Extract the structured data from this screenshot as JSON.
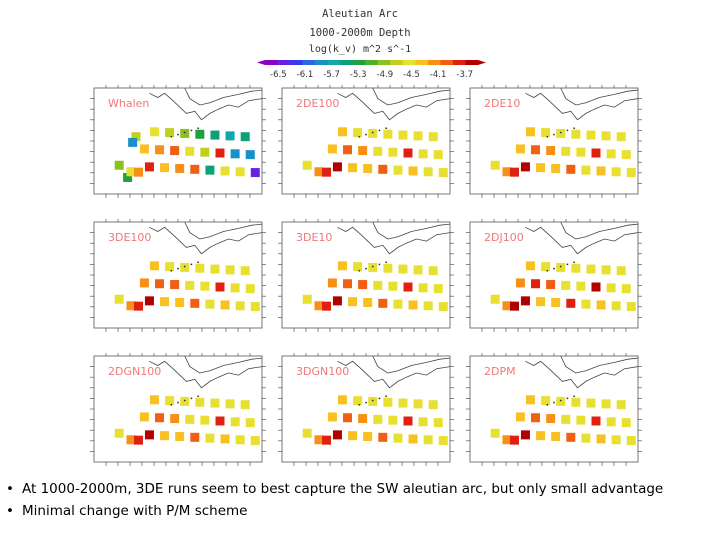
{
  "chart_data": {
    "type": "heatmap",
    "title": "Aleutian Arc",
    "subtitle": "1000-2000m Depth",
    "colorbar": {
      "label": "log(k_v)  m^2 s^-1",
      "min": -6.7,
      "max": -3.5,
      "tick_labels": [
        "-6.5",
        "-6.1",
        "-5.7",
        "-5.3",
        "-4.9",
        "-4.5",
        "-4.1",
        "-3.7"
      ],
      "colors": [
        "#8a00c4",
        "#6a20e0",
        "#3a3ae8",
        "#2a6ae0",
        "#1a90c8",
        "#10a8a8",
        "#10a078",
        "#20a040",
        "#50b028",
        "#8ac020",
        "#c0d020",
        "#e8e030",
        "#f8c020",
        "#f89018",
        "#f06010",
        "#e02010",
        "#b00000"
      ]
    },
    "panels": [
      {
        "name": "Whalen",
        "cells": [
          [
            3,
            -4.9
          ],
          [
            4,
            -5.3
          ],
          [
            4.4,
            -4.5
          ],
          [
            5,
            -4.7
          ],
          [
            5.3,
            -4.2
          ],
          [
            4.6,
            -5.8
          ],
          [
            6,
            -4.4
          ],
          [
            6.6,
            -3.7
          ],
          [
            7.2,
            -4.6
          ],
          [
            7.8,
            -4.1
          ],
          [
            8.4,
            -4.4
          ],
          [
            9,
            -4.8
          ],
          [
            9.6,
            -4.0
          ],
          [
            10.2,
            -4.2
          ],
          [
            10.8,
            -4.9
          ],
          [
            11.4,
            -4.5
          ],
          [
            12,
            -3.9
          ],
          [
            12.6,
            -5.2
          ],
          [
            13.2,
            -4.7
          ],
          [
            13.8,
            -5.4
          ],
          [
            14.4,
            -5.5
          ],
          [
            15,
            -3.8
          ],
          [
            15.6,
            -4.5
          ],
          [
            16.2,
            -5.6
          ],
          [
            16.8,
            -5.9
          ],
          [
            17.4,
            -4.6
          ],
          [
            18,
            -5.5
          ],
          [
            18.6,
            -5.9
          ],
          [
            19.2,
            -6.5
          ]
        ]
      },
      {
        "name": "2DE100",
        "cells": [
          [
            3,
            -4.6
          ],
          [
            4.4,
            -4.1
          ],
          [
            5.3,
            -3.7
          ],
          [
            6,
            -4.3
          ],
          [
            6.6,
            -3.6
          ],
          [
            7.2,
            -4.4
          ],
          [
            7.8,
            -4.0
          ],
          [
            8.4,
            -4.4
          ],
          [
            9,
            -4.6
          ],
          [
            9.6,
            -4.1
          ],
          [
            10.2,
            -4.3
          ],
          [
            10.8,
            -4.6
          ],
          [
            11.4,
            -4.5
          ],
          [
            12,
            -3.9
          ],
          [
            12.6,
            -4.6
          ],
          [
            13.2,
            -4.6
          ],
          [
            13.8,
            -4.6
          ],
          [
            14.4,
            -4.6
          ],
          [
            15,
            -3.7
          ],
          [
            15.6,
            -4.4
          ],
          [
            16.2,
            -4.6
          ],
          [
            16.8,
            -4.6
          ],
          [
            17.4,
            -4.6
          ],
          [
            18,
            -4.6
          ],
          [
            18.6,
            -4.6
          ],
          [
            19.2,
            -4.6
          ]
        ]
      },
      {
        "name": "2DE10",
        "cells": [
          [
            3,
            -4.6
          ],
          [
            4.4,
            -4.1
          ],
          [
            5.3,
            -3.7
          ],
          [
            6,
            -4.3
          ],
          [
            6.6,
            -3.6
          ],
          [
            7.2,
            -4.4
          ],
          [
            7.8,
            -4.0
          ],
          [
            8.4,
            -4.4
          ],
          [
            9,
            -4.6
          ],
          [
            9.6,
            -4.1
          ],
          [
            10.2,
            -4.3
          ],
          [
            10.8,
            -4.6
          ],
          [
            11.4,
            -4.5
          ],
          [
            12,
            -3.9
          ],
          [
            12.6,
            -4.6
          ],
          [
            13.2,
            -4.6
          ],
          [
            13.8,
            -4.6
          ],
          [
            14.4,
            -4.6
          ],
          [
            15,
            -3.7
          ],
          [
            15.6,
            -4.4
          ],
          [
            16.2,
            -4.6
          ],
          [
            16.8,
            -4.6
          ],
          [
            17.4,
            -4.6
          ],
          [
            18,
            -4.6
          ],
          [
            18.6,
            -4.6
          ],
          [
            19.2,
            -4.6
          ]
        ]
      },
      {
        "name": "3DE100",
        "cells": [
          [
            3,
            -4.6
          ],
          [
            4.4,
            -4.2
          ],
          [
            5.3,
            -3.8
          ],
          [
            6,
            -4.2
          ],
          [
            6.6,
            -3.6
          ],
          [
            7.2,
            -4.3
          ],
          [
            7.8,
            -3.9
          ],
          [
            8.4,
            -4.4
          ],
          [
            9,
            -4.6
          ],
          [
            9.6,
            -4.0
          ],
          [
            10.2,
            -4.3
          ],
          [
            10.8,
            -4.6
          ],
          [
            11.4,
            -4.5
          ],
          [
            12,
            -3.9
          ],
          [
            12.6,
            -4.6
          ],
          [
            13.2,
            -4.6
          ],
          [
            13.8,
            -4.6
          ],
          [
            14.4,
            -4.6
          ],
          [
            15,
            -3.8
          ],
          [
            15.6,
            -4.4
          ],
          [
            16.2,
            -4.6
          ],
          [
            16.8,
            -4.6
          ],
          [
            17.4,
            -4.6
          ],
          [
            18,
            -4.6
          ],
          [
            18.6,
            -4.6
          ],
          [
            19.2,
            -4.6
          ]
        ]
      },
      {
        "name": "3DE10",
        "cells": [
          [
            3,
            -4.6
          ],
          [
            4.4,
            -4.2
          ],
          [
            5.3,
            -3.8
          ],
          [
            6,
            -4.2
          ],
          [
            6.6,
            -3.6
          ],
          [
            7.2,
            -4.3
          ],
          [
            7.8,
            -3.9
          ],
          [
            8.4,
            -4.4
          ],
          [
            9,
            -4.6
          ],
          [
            9.6,
            -4.0
          ],
          [
            10.2,
            -4.3
          ],
          [
            10.8,
            -4.6
          ],
          [
            11.4,
            -4.5
          ],
          [
            12,
            -3.9
          ],
          [
            12.6,
            -4.6
          ],
          [
            13.2,
            -4.6
          ],
          [
            13.8,
            -4.6
          ],
          [
            14.4,
            -4.6
          ],
          [
            15,
            -3.8
          ],
          [
            15.6,
            -4.4
          ],
          [
            16.2,
            -4.6
          ],
          [
            16.8,
            -4.6
          ],
          [
            17.4,
            -4.6
          ],
          [
            18,
            -4.6
          ],
          [
            18.6,
            -4.6
          ],
          [
            19.2,
            -4.6
          ]
        ]
      },
      {
        "name": "2DJ100",
        "cells": [
          [
            3,
            -4.6
          ],
          [
            4.4,
            -4.1
          ],
          [
            5.3,
            -3.6
          ],
          [
            6,
            -4.2
          ],
          [
            6.6,
            -3.6
          ],
          [
            7.2,
            -4.3
          ],
          [
            7.8,
            -3.8
          ],
          [
            8.4,
            -4.4
          ],
          [
            9,
            -4.6
          ],
          [
            9.6,
            -4.0
          ],
          [
            10.2,
            -4.3
          ],
          [
            10.8,
            -4.6
          ],
          [
            11.4,
            -4.5
          ],
          [
            12,
            -3.8
          ],
          [
            12.6,
            -4.6
          ],
          [
            13.2,
            -4.6
          ],
          [
            13.8,
            -4.6
          ],
          [
            14.4,
            -4.6
          ],
          [
            15,
            -3.6
          ],
          [
            15.6,
            -4.4
          ],
          [
            16.2,
            -4.6
          ],
          [
            16.8,
            -4.6
          ],
          [
            17.4,
            -4.6
          ],
          [
            18,
            -4.6
          ],
          [
            18.6,
            -4.6
          ],
          [
            19.2,
            -4.6
          ]
        ]
      },
      {
        "name": "2DGN100",
        "cells": [
          [
            3,
            -4.6
          ],
          [
            4.4,
            -4.2
          ],
          [
            5.3,
            -3.8
          ],
          [
            6,
            -4.3
          ],
          [
            6.6,
            -3.6
          ],
          [
            7.2,
            -4.4
          ],
          [
            7.8,
            -4.0
          ],
          [
            8.4,
            -4.4
          ],
          [
            9,
            -4.6
          ],
          [
            9.6,
            -4.1
          ],
          [
            10.2,
            -4.3
          ],
          [
            10.8,
            -4.6
          ],
          [
            11.4,
            -4.5
          ],
          [
            12,
            -3.9
          ],
          [
            12.6,
            -4.6
          ],
          [
            13.2,
            -4.6
          ],
          [
            13.8,
            -4.6
          ],
          [
            14.4,
            -4.6
          ],
          [
            15,
            -3.8
          ],
          [
            15.6,
            -4.4
          ],
          [
            16.2,
            -4.6
          ],
          [
            16.8,
            -4.6
          ],
          [
            17.4,
            -4.6
          ],
          [
            18,
            -4.6
          ],
          [
            18.6,
            -4.6
          ],
          [
            19.2,
            -4.6
          ]
        ]
      },
      {
        "name": "3DGN100",
        "cells": [
          [
            3,
            -4.6
          ],
          [
            4.4,
            -4.2
          ],
          [
            5.3,
            -3.8
          ],
          [
            6,
            -4.3
          ],
          [
            6.6,
            -3.6
          ],
          [
            7.2,
            -4.4
          ],
          [
            7.8,
            -4.0
          ],
          [
            8.4,
            -4.4
          ],
          [
            9,
            -4.6
          ],
          [
            9.6,
            -4.1
          ],
          [
            10.2,
            -4.3
          ],
          [
            10.8,
            -4.6
          ],
          [
            11.4,
            -4.5
          ],
          [
            12,
            -3.9
          ],
          [
            12.6,
            -4.6
          ],
          [
            13.2,
            -4.6
          ],
          [
            13.8,
            -4.6
          ],
          [
            14.4,
            -4.6
          ],
          [
            15,
            -3.8
          ],
          [
            15.6,
            -4.4
          ],
          [
            16.2,
            -4.6
          ],
          [
            16.8,
            -4.6
          ],
          [
            17.4,
            -4.6
          ],
          [
            18,
            -4.6
          ],
          [
            18.6,
            -4.6
          ],
          [
            19.2,
            -4.6
          ]
        ]
      },
      {
        "name": "2DPM",
        "cells": [
          [
            3,
            -4.6
          ],
          [
            4.4,
            -4.1
          ],
          [
            5.3,
            -3.7
          ],
          [
            6,
            -4.3
          ],
          [
            6.6,
            -3.6
          ],
          [
            7.2,
            -4.4
          ],
          [
            7.8,
            -4.0
          ],
          [
            8.4,
            -4.4
          ],
          [
            9,
            -4.6
          ],
          [
            9.6,
            -4.1
          ],
          [
            10.2,
            -4.3
          ],
          [
            10.8,
            -4.6
          ],
          [
            11.4,
            -4.5
          ],
          [
            12,
            -3.9
          ],
          [
            12.6,
            -4.6
          ],
          [
            13.2,
            -4.6
          ],
          [
            13.8,
            -4.6
          ],
          [
            14.4,
            -4.6
          ],
          [
            15,
            -3.7
          ],
          [
            15.6,
            -4.4
          ],
          [
            16.2,
            -4.6
          ],
          [
            16.8,
            -4.6
          ],
          [
            17.4,
            -4.6
          ],
          [
            18,
            -4.6
          ],
          [
            18.6,
            -4.6
          ],
          [
            19.2,
            -4.6
          ]
        ]
      }
    ]
  },
  "bullets": [
    "At 1000-2000m, 3DE runs seem to best capture the SW aleutian arc, but only small advantage",
    "Minimal change with P/M scheme"
  ]
}
